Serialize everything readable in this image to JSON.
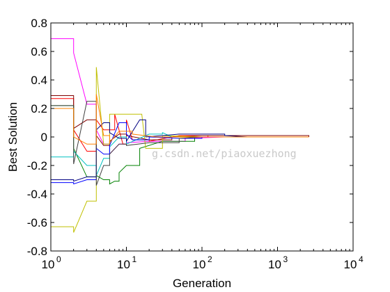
{
  "chart_data": {
    "type": "line",
    "title": "",
    "xlabel": "Generation",
    "ylabel": "Best Solution",
    "xscale": "log",
    "xlim": [
      1,
      10000
    ],
    "ylim": [
      -0.8,
      0.8
    ],
    "x_ticks": [
      1,
      10,
      100,
      1000,
      10000
    ],
    "x_tick_base": "10",
    "x_tick_exponents": [
      "0",
      "1",
      "2",
      "3",
      "4"
    ],
    "y_ticks": [
      -0.8,
      -0.6,
      -0.4,
      -0.2,
      0,
      0.2,
      0.4,
      0.6,
      0.8
    ],
    "y_tick_labels": [
      "-0.8",
      "-0.6",
      "-0.4",
      "-0.2",
      "0",
      "0.2",
      "0.4",
      "0.6",
      "0.8"
    ],
    "grid": false,
    "legend": "none",
    "watermark": "g.csdn.net/piaoxuezhong",
    "series": [
      {
        "color": "#ff00ff",
        "points": [
          [
            1,
            0.69
          ],
          [
            2,
            0.59
          ],
          [
            3,
            0.23
          ],
          [
            4,
            0.05
          ],
          [
            5,
            -0.05
          ],
          [
            6,
            -0.12
          ],
          [
            8,
            -0.05
          ],
          [
            10,
            -0.04
          ],
          [
            20,
            -0.03
          ],
          [
            60,
            -0.01
          ],
          [
            200,
            0.0
          ],
          [
            2600,
            0.0
          ]
        ]
      },
      {
        "color": "#ff0000",
        "points": [
          [
            1,
            0.27
          ],
          [
            2,
            0.05
          ],
          [
            3,
            -0.1
          ],
          [
            4,
            0.12
          ],
          [
            5,
            0.05
          ],
          [
            7,
            0.16
          ],
          [
            9,
            -0.05
          ],
          [
            10,
            0.12
          ],
          [
            12,
            -0.02
          ],
          [
            20,
            -0.03
          ],
          [
            50,
            0.01
          ],
          [
            120,
            0.0
          ],
          [
            400,
            0.0
          ],
          [
            2600,
            0.0
          ]
        ]
      },
      {
        "color": "#800000",
        "points": [
          [
            1,
            0.29
          ],
          [
            2,
            0.06
          ],
          [
            3,
            0.12
          ],
          [
            4,
            0.01
          ],
          [
            5,
            -0.06
          ],
          [
            6,
            -0.03
          ],
          [
            8,
            0.02
          ],
          [
            10,
            0.01
          ],
          [
            20,
            -0.02
          ],
          [
            40,
            0.0
          ],
          [
            100,
            0.01
          ],
          [
            2600,
            0.0
          ]
        ]
      },
      {
        "color": "#008000",
        "points": [
          [
            1,
            0.22
          ],
          [
            2,
            -0.08
          ],
          [
            3,
            -0.28
          ],
          [
            4,
            -0.27
          ],
          [
            5,
            -0.3
          ],
          [
            6,
            -0.33
          ],
          [
            7,
            -0.31
          ],
          [
            8,
            -0.25
          ],
          [
            10,
            -0.2
          ],
          [
            15,
            -0.08
          ],
          [
            30,
            -0.03
          ],
          [
            80,
            0.0
          ],
          [
            2600,
            0.0
          ]
        ]
      },
      {
        "color": "#c0c000",
        "points": [
          [
            1,
            -0.63
          ],
          [
            2,
            -0.67
          ],
          [
            3,
            -0.45
          ],
          [
            4,
            0.49
          ],
          [
            5,
            -0.05
          ],
          [
            6,
            0.16
          ],
          [
            10,
            0.16
          ],
          [
            16,
            0.16
          ],
          [
            18,
            -0.08
          ],
          [
            30,
            0.01
          ],
          [
            100,
            0.0
          ],
          [
            2600,
            0.0
          ]
        ]
      },
      {
        "color": "#00c0c0",
        "points": [
          [
            1,
            -0.14
          ],
          [
            2,
            -0.1
          ],
          [
            3,
            -0.2
          ],
          [
            4,
            -0.27
          ],
          [
            5,
            -0.15
          ],
          [
            6,
            -0.07
          ],
          [
            8,
            0.0
          ],
          [
            10,
            -0.05
          ],
          [
            20,
            0.02
          ],
          [
            30,
            0.03
          ],
          [
            40,
            0.0
          ],
          [
            100,
            0.0
          ],
          [
            2600,
            0.0
          ]
        ]
      },
      {
        "color": "#000080",
        "points": [
          [
            1,
            -0.3
          ],
          [
            2,
            -0.31
          ],
          [
            3,
            -0.28
          ],
          [
            4,
            0.05
          ],
          [
            5,
            0.1
          ],
          [
            6,
            0.03
          ],
          [
            8,
            -0.01
          ],
          [
            10,
            -0.03
          ],
          [
            15,
            0.12
          ],
          [
            18,
            0.0
          ],
          [
            50,
            0.02
          ],
          [
            200,
            0.01
          ],
          [
            400,
            0.0
          ],
          [
            2600,
            0.0
          ]
        ]
      },
      {
        "color": "#0000ff",
        "points": [
          [
            1,
            -0.32
          ],
          [
            2,
            -0.33
          ],
          [
            3,
            -0.3
          ],
          [
            4,
            -0.08
          ],
          [
            5,
            -0.12
          ],
          [
            6,
            -0.06
          ],
          [
            8,
            0.1
          ],
          [
            10,
            0.02
          ],
          [
            12,
            -0.02
          ],
          [
            20,
            0.0
          ],
          [
            50,
            -0.01
          ],
          [
            100,
            0.0
          ],
          [
            2600,
            0.0
          ]
        ]
      },
      {
        "color": "#404040",
        "points": [
          [
            1,
            0.22
          ],
          [
            2,
            -0.19
          ],
          [
            3,
            0.25
          ],
          [
            4,
            -0.34
          ],
          [
            5,
            -0.2
          ],
          [
            6,
            -0.12
          ],
          [
            8,
            -0.05
          ],
          [
            10,
            -0.06
          ],
          [
            20,
            -0.04
          ],
          [
            50,
            -0.01
          ],
          [
            100,
            0.0
          ],
          [
            2600,
            0.0
          ]
        ]
      },
      {
        "color": "#ff8000",
        "points": [
          [
            1,
            0.2
          ],
          [
            2,
            0.0
          ],
          [
            3,
            -0.05
          ],
          [
            4,
            0.3
          ],
          [
            5,
            0.01
          ],
          [
            6,
            -0.04
          ],
          [
            8,
            0.04
          ],
          [
            12,
            0.02
          ],
          [
            25,
            0.0
          ],
          [
            2600,
            0.0
          ]
        ]
      }
    ]
  }
}
